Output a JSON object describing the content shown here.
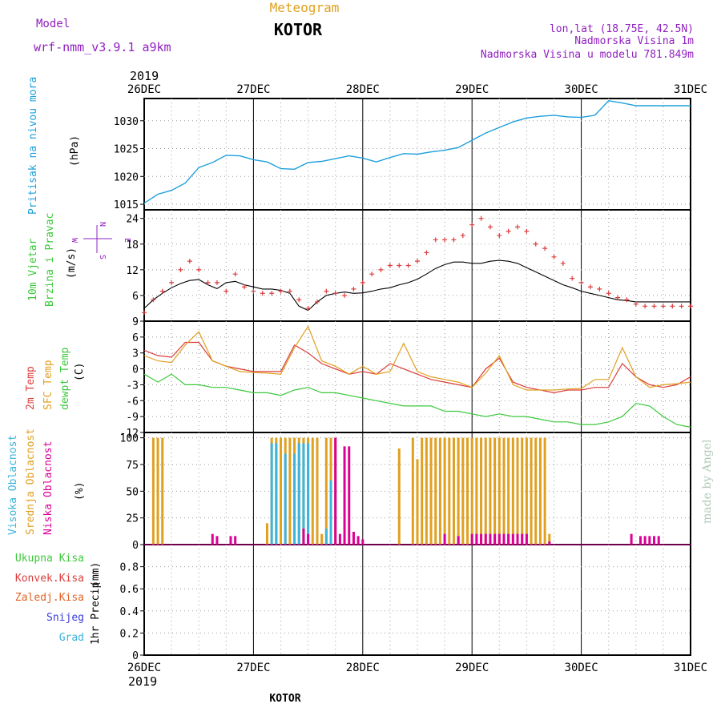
{
  "header": {
    "model_label": "Model",
    "model_name": "wrf-nmm_v3.9.1  a9km",
    "meteogram_label": "Meteogram",
    "station": "KOTOR",
    "lonlat": "lon,lat (18.75E, 42.5N)",
    "altitude": "Nadmorska Visina 1m",
    "model_altitude": "Nadmorska Visina u modelu 781.849m",
    "bottom_station": "KOTOR",
    "watermark": "made by Angel"
  },
  "colors": {
    "pressure": "#1ea0dc",
    "temp2m": "#dc3c3c",
    "sfc": "#e0a020",
    "dew": "#3cc83c",
    "gust": "#dc3c3c",
    "wind": "#000000",
    "cloud_high": "#3cb4dc",
    "cloud_mid": "#e0a020",
    "cloud_low": "#dc0096",
    "purple": "#9020c0",
    "precip_total": "#3cc83c",
    "precip_conv": "#dc3c3c",
    "precip_strat": "#e06428",
    "snow": "#3c3cdc",
    "hail": "#3cb4dc",
    "watermark": "#b0c8b8"
  },
  "time_axis": {
    "year_top": "2019",
    "year_bottom": "2019",
    "labels": [
      "26DEC",
      "27DEC",
      "28DEC",
      "29DEC",
      "30DEC",
      "31DEC"
    ],
    "start_hour": 0,
    "end_hour": 120
  },
  "chart_data": [
    {
      "type": "line",
      "panel": "pressure",
      "ylabel_name": "Pritisak na nivou mora",
      "ylabel_unit": "(hPa)",
      "ylim": [
        1014,
        1034
      ],
      "yticks": [
        1015,
        1020,
        1025,
        1030
      ],
      "grid": true,
      "series": [
        {
          "name": "Pritisak na nivou mora",
          "x": [
            0,
            3,
            6,
            9,
            12,
            15,
            18,
            21,
            24,
            27,
            30,
            33,
            36,
            39,
            42,
            45,
            48,
            51,
            54,
            57,
            60,
            63,
            66,
            69,
            72,
            75,
            78,
            81,
            84,
            87,
            90,
            93,
            96,
            99,
            102,
            105,
            108,
            111,
            114,
            117,
            120
          ],
          "y": [
            1015.2,
            1016.8,
            1017.5,
            1018.8,
            1021.6,
            1022.5,
            1023.8,
            1023.7,
            1023.0,
            1022.6,
            1021.4,
            1021.3,
            1022.5,
            1022.7,
            1023.2,
            1023.7,
            1023.3,
            1022.6,
            1023.4,
            1024.1,
            1024.0,
            1024.4,
            1024.7,
            1025.2,
            1026.5,
            1027.8,
            1028.8,
            1029.8,
            1030.5,
            1030.8,
            1031.0,
            1030.7,
            1030.6,
            1031.0,
            1033.6,
            1033.2,
            1032.7,
            1032.7,
            1032.7,
            1032.7,
            1032.7
          ]
        }
      ]
    },
    {
      "type": "line",
      "panel": "wind",
      "ylabel_name": "10m Vjetar",
      "ylabel_name2": "Brzina i Pravac",
      "ylabel_unit": "(m/s)",
      "compass": {
        "n": "N",
        "s": "S",
        "e": "E",
        "w": "W"
      },
      "ylim": [
        0,
        26
      ],
      "yticks": [
        6,
        12,
        18,
        24
      ],
      "grid": true,
      "series": [
        {
          "name": "Brzina",
          "x": [
            0,
            2,
            4,
            6,
            8,
            10,
            12,
            14,
            16,
            18,
            20,
            22,
            24,
            26,
            28,
            30,
            32,
            34,
            36,
            38,
            40,
            42,
            44,
            46,
            48,
            50,
            52,
            54,
            56,
            58,
            60,
            62,
            64,
            66,
            68,
            70,
            72,
            74,
            76,
            78,
            80,
            82,
            84,
            86,
            88,
            90,
            92,
            94,
            96,
            98,
            100,
            102,
            104,
            106,
            108,
            110,
            112,
            114,
            116,
            118,
            120
          ],
          "y": [
            3,
            5,
            6.5,
            7.8,
            8.8,
            9.5,
            9.7,
            8.5,
            7.6,
            9.0,
            9.3,
            8.5,
            8.0,
            7.5,
            7.5,
            7.2,
            6.5,
            3.5,
            2.5,
            4.5,
            6,
            6.5,
            6.8,
            6.5,
            6.6,
            7.0,
            7.5,
            7.8,
            8.5,
            9.0,
            9.8,
            11.0,
            12.3,
            13.2,
            13.8,
            13.8,
            13.5,
            13.5,
            14.0,
            14.2,
            14.0,
            13.5,
            12.5,
            11.5,
            10.5,
            9.5,
            8.5,
            7.8,
            7.0,
            6.5,
            6.0,
            5.5,
            5.0,
            4.8,
            4.5,
            4.5,
            4.5,
            4.5,
            4.5,
            4.5,
            4.5
          ]
        },
        {
          "name": "Udari",
          "x": [
            0,
            2,
            4,
            6,
            8,
            10,
            12,
            14,
            16,
            18,
            20,
            22,
            24,
            26,
            28,
            30,
            32,
            34,
            36,
            38,
            40,
            42,
            44,
            46,
            48,
            50,
            52,
            54,
            56,
            58,
            60,
            62,
            64,
            66,
            68,
            70,
            72,
            74,
            76,
            78,
            80,
            82,
            84,
            86,
            88,
            90,
            92,
            94,
            96,
            98,
            100,
            102,
            104,
            106,
            108,
            110,
            112,
            114,
            116,
            118,
            120
          ],
          "y": [
            2,
            5,
            7,
            9,
            12,
            14,
            12,
            9,
            9,
            7,
            11,
            8,
            7,
            6.5,
            6.5,
            7,
            7,
            5,
            3,
            4.5,
            7,
            6.5,
            6,
            7.5,
            9,
            11,
            12,
            13,
            13,
            13,
            14,
            16,
            19,
            19,
            19,
            20,
            22.5,
            24,
            22,
            20,
            21,
            22,
            21,
            18,
            17,
            15,
            13.5,
            10,
            9,
            8,
            7.5,
            6.5,
            5.5,
            5,
            4,
            3.5,
            3.5,
            3.5,
            3.5,
            3.5,
            3.5
          ]
        }
      ]
    },
    {
      "type": "line",
      "panel": "temperature",
      "ylabel_name1": "2m Temp",
      "ylabel_name2": "SFC Temp",
      "ylabel_name3": "dewpt Temp",
      "ylabel_unit": "(C)",
      "ylim": [
        -12,
        9
      ],
      "yticks": [
        -12,
        -9,
        -6,
        -3,
        0,
        3,
        6,
        9
      ],
      "grid": true,
      "series": [
        {
          "name": "2m Temp",
          "x": [
            0,
            3,
            6,
            9,
            12,
            15,
            18,
            21,
            24,
            27,
            30,
            33,
            36,
            39,
            42,
            45,
            48,
            51,
            54,
            57,
            60,
            63,
            66,
            69,
            72,
            75,
            78,
            81,
            84,
            87,
            90,
            93,
            96,
            99,
            102,
            105,
            108,
            111,
            114,
            117,
            120
          ],
          "y": [
            3.5,
            2.5,
            2.2,
            5,
            5,
            1.5,
            0.5,
            0,
            -0.5,
            -0.5,
            -0.5,
            4.5,
            3,
            1,
            0,
            -1,
            -0.5,
            -1,
            1,
            0,
            -1,
            -2,
            -2.5,
            -3,
            -3.5,
            0,
            2,
            -2.5,
            -3.5,
            -4,
            -4.5,
            -4,
            -4,
            -3.5,
            -3.5,
            1,
            -1.5,
            -3,
            -3.5,
            -3,
            -1.5
          ]
        },
        {
          "name": "SFC Temp",
          "x": [
            0,
            3,
            6,
            9,
            12,
            15,
            18,
            21,
            24,
            27,
            30,
            33,
            36,
            39,
            42,
            45,
            48,
            51,
            54,
            57,
            60,
            63,
            66,
            69,
            72,
            75,
            78,
            81,
            84,
            87,
            90,
            93,
            96,
            99,
            102,
            105,
            108,
            111,
            114,
            117,
            120
          ],
          "y": [
            2.5,
            1.5,
            1.2,
            4.5,
            7,
            1.5,
            0.5,
            -0.5,
            -0.7,
            -0.8,
            -1,
            4,
            8,
            1.5,
            0.5,
            -1,
            0.5,
            -1,
            -0.5,
            4.8,
            -0.5,
            -1.5,
            -2,
            -2.5,
            -3.5,
            -0.8,
            2.5,
            -3,
            -4,
            -4,
            -4,
            -3.8,
            -3.7,
            -2,
            -2,
            4,
            -1.5,
            -3.5,
            -3,
            -2.8,
            -2.5
          ]
        },
        {
          "name": "dewpt Temp",
          "x": [
            0,
            3,
            6,
            9,
            12,
            15,
            18,
            21,
            24,
            27,
            30,
            33,
            36,
            39,
            42,
            45,
            48,
            51,
            54,
            57,
            60,
            63,
            66,
            69,
            72,
            75,
            78,
            81,
            84,
            87,
            90,
            93,
            96,
            99,
            102,
            105,
            108,
            111,
            114,
            117,
            120
          ],
          "y": [
            -1,
            -2.5,
            -1,
            -3,
            -3,
            -3.5,
            -3.5,
            -4,
            -4.5,
            -4.5,
            -5,
            -4,
            -3.5,
            -4.5,
            -4.5,
            -5,
            -5.5,
            -6,
            -6.5,
            -7,
            -7,
            -7,
            -8,
            -8,
            -8.5,
            -9,
            -8.5,
            -9,
            -9,
            -9.5,
            -10,
            -10,
            -10.5,
            -10.5,
            -10,
            -9,
            -6.5,
            -7,
            -9,
            -10.5,
            -11
          ]
        }
      ]
    },
    {
      "type": "bar",
      "panel": "clouds",
      "ylabel_name1": "Visoka Oblacnost",
      "ylabel_name2": "Srednja Oblacnost",
      "ylabel_name3": "Niska Oblacnost",
      "ylabel_unit": "(%)",
      "ylim": [
        0,
        105
      ],
      "yticks": [
        0,
        25,
        50,
        75,
        100
      ],
      "grid": true,
      "series": [
        {
          "name": "Visoka Oblacnost",
          "x": [
            28,
            29,
            31,
            33,
            34,
            35,
            36,
            40,
            41
          ],
          "y": [
            95,
            95,
            85,
            85,
            95,
            95,
            95,
            15,
            60
          ]
        },
        {
          "name": "Srednja Oblacnost",
          "x": [
            2,
            3,
            4,
            27,
            28,
            29,
            30,
            31,
            32,
            33,
            34,
            35,
            36,
            37,
            38,
            39,
            40,
            41,
            42,
            56,
            59,
            60,
            61,
            62,
            63,
            64,
            65,
            66,
            67,
            68,
            69,
            70,
            71,
            72,
            73,
            74,
            75,
            76,
            77,
            78,
            79,
            80,
            81,
            82,
            83,
            84,
            85,
            86,
            87,
            88,
            89
          ],
          "y": [
            100,
            100,
            100,
            20,
            100,
            100,
            100,
            100,
            100,
            100,
            100,
            100,
            100,
            100,
            100,
            10,
            100,
            100,
            100,
            90,
            100,
            80,
            100,
            100,
            100,
            100,
            100,
            100,
            100,
            100,
            100,
            100,
            100,
            100,
            100,
            100,
            100,
            100,
            100,
            100,
            100,
            100,
            100,
            100,
            100,
            100,
            100,
            100,
            100,
            100,
            10
          ]
        },
        {
          "name": "Niska Oblacnost",
          "x": [
            15,
            16,
            19,
            20,
            35,
            36,
            42,
            43,
            44,
            45,
            46,
            47,
            48,
            66,
            69,
            72,
            73,
            74,
            75,
            76,
            77,
            78,
            79,
            80,
            81,
            82,
            83,
            84,
            89,
            107,
            109,
            110,
            111,
            112,
            113
          ],
          "y": [
            10,
            8,
            8,
            8,
            15,
            10,
            100,
            10,
            92,
            92,
            12,
            8,
            5,
            10,
            8,
            10,
            10,
            10,
            10,
            10,
            10,
            10,
            10,
            10,
            10,
            10,
            10,
            10,
            3,
            10,
            8,
            8,
            8,
            8,
            8
          ]
        }
      ]
    },
    {
      "type": "bar",
      "panel": "precip",
      "ylabel_name": "1hr Precip",
      "ylabel_unit": "(mm)",
      "legend": [
        "Ukupna Kisa",
        "Konvek.Kisa",
        "Zaledj.Kisa",
        "Snijeg",
        "Grad"
      ],
      "ylim": [
        0,
        1
      ],
      "yticks": [
        0,
        0.2,
        0.4,
        0.6,
        0.8
      ],
      "grid": true,
      "series": []
    }
  ]
}
